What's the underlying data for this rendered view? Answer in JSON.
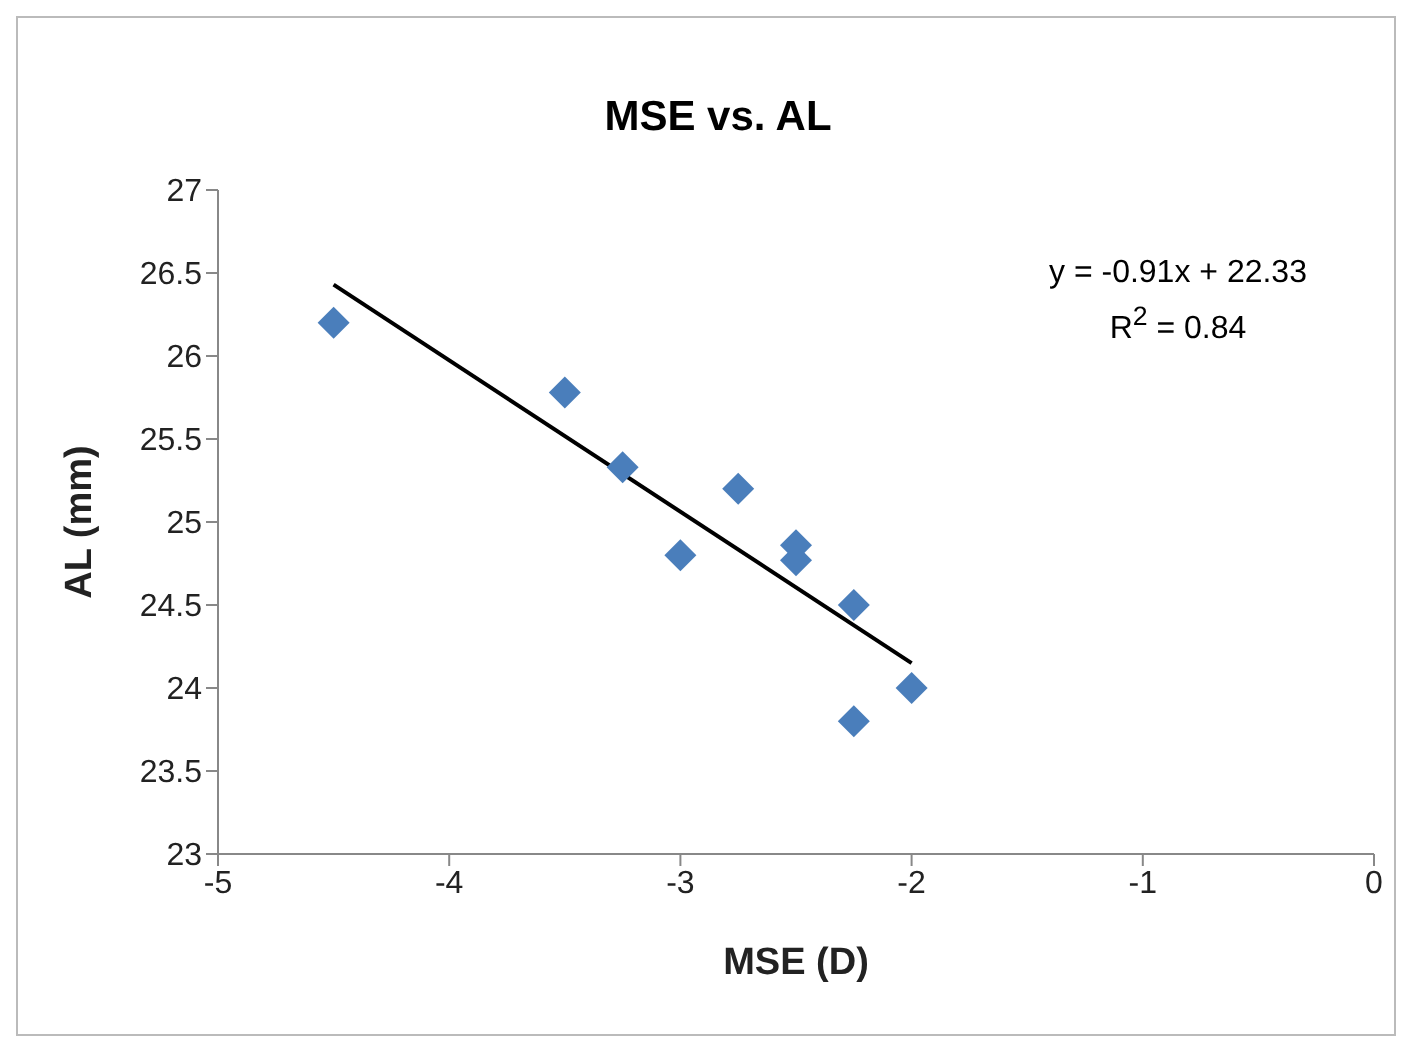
{
  "chart_data": {
    "type": "scatter",
    "title": "MSE vs. AL",
    "xlabel": "MSE (D)",
    "ylabel": "AL (mm)",
    "xlim": [
      -5,
      0
    ],
    "xticks": [
      -5,
      -4,
      -3,
      -2,
      -1,
      0
    ],
    "ylim": [
      23,
      27
    ],
    "yticks": [
      23,
      23.5,
      24,
      24.5,
      25,
      25.5,
      26,
      26.5,
      27
    ],
    "grid": false,
    "legend": false,
    "annotations": [
      "y = -0.91x + 22.33",
      "R$^{2}$ = 0.84"
    ],
    "series": [
      {
        "marker": "diamond",
        "color": "#4a7ebb",
        "x": [
          -4.5,
          -3.5,
          -3.25,
          -3,
          -2.75,
          -2.5,
          -2.5,
          -2.25,
          -2.25,
          -2
        ],
        "values": [
          26.2,
          25.78,
          25.33,
          24.8,
          25.2,
          24.86,
          24.77,
          24.5,
          23.8,
          24.0
        ]
      },
      {
        "type": "line",
        "marker": "none",
        "line_style": "solid",
        "color": "#000000",
        "x": [
          -4.5,
          -2
        ],
        "values": [
          26.43,
          24.15
        ]
      }
    ]
  }
}
